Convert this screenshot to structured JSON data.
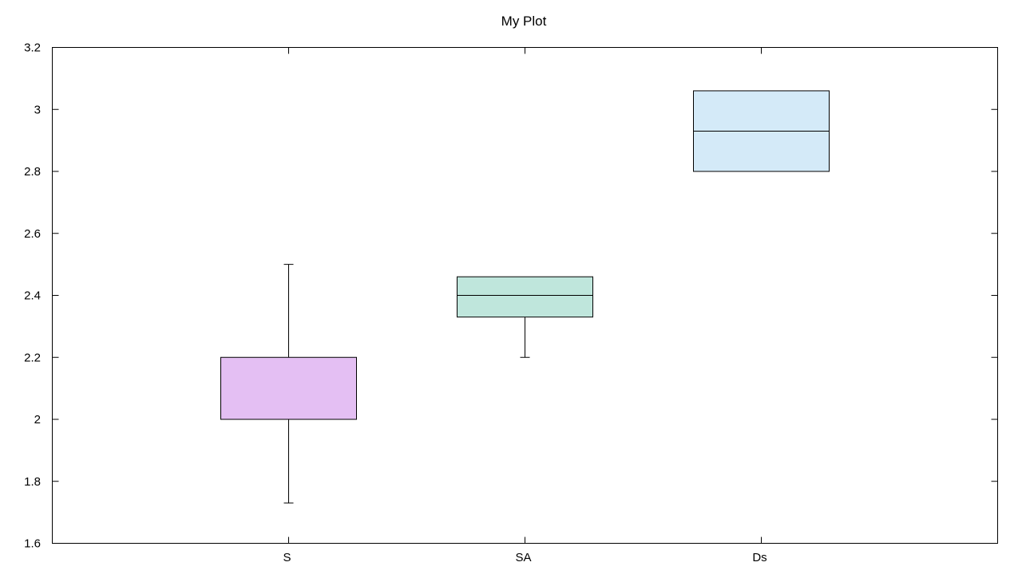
{
  "chart_data": {
    "type": "box",
    "title": "My Plot",
    "xlabel": "",
    "ylabel": "",
    "ylim": [
      1.6,
      3.2
    ],
    "yticks": [
      "1.6",
      "1.8",
      "2",
      "2.2",
      "2.4",
      "2.6",
      "2.8",
      "3",
      "3.2"
    ],
    "categories": [
      "S",
      "SA",
      "Ds"
    ],
    "boxes": [
      {
        "category": "S",
        "whisker_low": 1.73,
        "q1": 2.0,
        "median": 2.0,
        "q3": 2.2,
        "whisker_high": 2.5,
        "color": "#e4bff3"
      },
      {
        "category": "SA",
        "whisker_low": 2.2,
        "q1": 2.33,
        "median": 2.4,
        "q3": 2.46,
        "whisker_high": 2.46,
        "color": "#bfe6dc"
      },
      {
        "category": "Ds",
        "whisker_low": 2.8,
        "q1": 2.8,
        "median": 2.93,
        "q3": 3.06,
        "whisker_high": 3.06,
        "color": "#d4eaf8"
      }
    ],
    "grid": false,
    "legend": "none"
  }
}
